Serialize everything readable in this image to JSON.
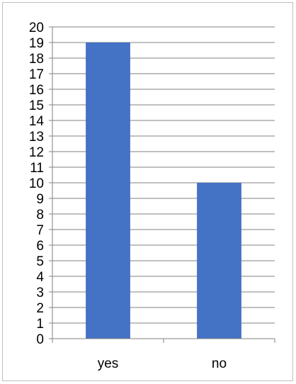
{
  "chart_data": {
    "type": "bar",
    "categories": [
      "yes",
      "no"
    ],
    "values": [
      19,
      10
    ],
    "title": "",
    "xlabel": "",
    "ylabel": "",
    "ylim": [
      0,
      20
    ],
    "ytick_step": 1,
    "grid": true,
    "legend": "none",
    "bar_color": "#4472c4",
    "grid_color": "#808080"
  }
}
